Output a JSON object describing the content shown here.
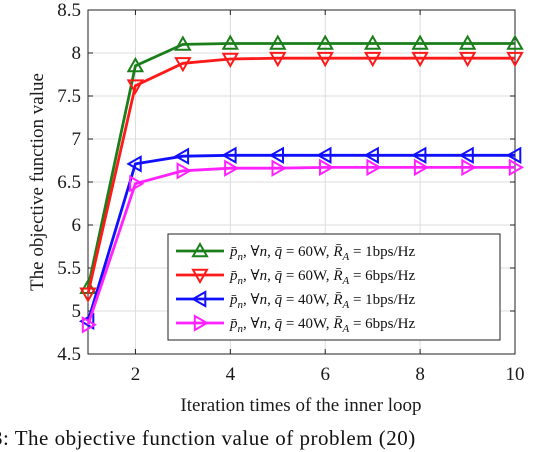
{
  "chart_data": {
    "type": "line",
    "xlabel": "Iteration times of the inner loop",
    "ylabel": "The objective function value",
    "xlim": [
      1,
      10
    ],
    "ylim": [
      4.5,
      8.5
    ],
    "xticks": [
      2,
      4,
      6,
      8,
      10
    ],
    "yticks": [
      4.5,
      5,
      5.5,
      6,
      6.5,
      7,
      7.5,
      8,
      8.5
    ],
    "grid": true,
    "legend_position": "bottom-right",
    "x": [
      1,
      2,
      3,
      4,
      5,
      6,
      7,
      8,
      9,
      10
    ],
    "series": [
      {
        "name": "p̄ₙ, ∀n, q̄ = 60W, R̄_A = 1bps/Hz",
        "label_parts": [
          "60W",
          "1bps/Hz"
        ],
        "color": "#1a7f1a",
        "marker": "triangle-up",
        "values": [
          5.27,
          7.85,
          8.1,
          8.11,
          8.11,
          8.11,
          8.11,
          8.11,
          8.11,
          8.11
        ]
      },
      {
        "name": "p̄ₙ, ∀n, q̄ = 60W, R̄_A = 6bps/Hz",
        "label_parts": [
          "60W",
          "6bps/Hz"
        ],
        "color": "#ff1a1a",
        "marker": "triangle-down",
        "values": [
          5.2,
          7.62,
          7.88,
          7.93,
          7.94,
          7.94,
          7.94,
          7.94,
          7.94,
          7.94
        ]
      },
      {
        "name": "p̄ₙ, ∀n, q̄ = 40W, R̄_A = 1bps/Hz",
        "label_parts": [
          "40W",
          "1bps/Hz"
        ],
        "color": "#1010ff",
        "marker": "triangle-left",
        "values": [
          4.88,
          6.71,
          6.8,
          6.81,
          6.81,
          6.81,
          6.81,
          6.81,
          6.81,
          6.81
        ]
      },
      {
        "name": "p̄ₙ, ∀n, q̄ = 40W, R̄_A = 6bps/Hz",
        "label_parts": [
          "40W",
          "6bps/Hz"
        ],
        "color": "#ff22ff",
        "marker": "triangle-right",
        "values": [
          4.84,
          6.48,
          6.63,
          6.66,
          6.66,
          6.67,
          6.67,
          6.67,
          6.67,
          6.67
        ]
      }
    ]
  },
  "caption": "3: The objective function value of problem (20)"
}
